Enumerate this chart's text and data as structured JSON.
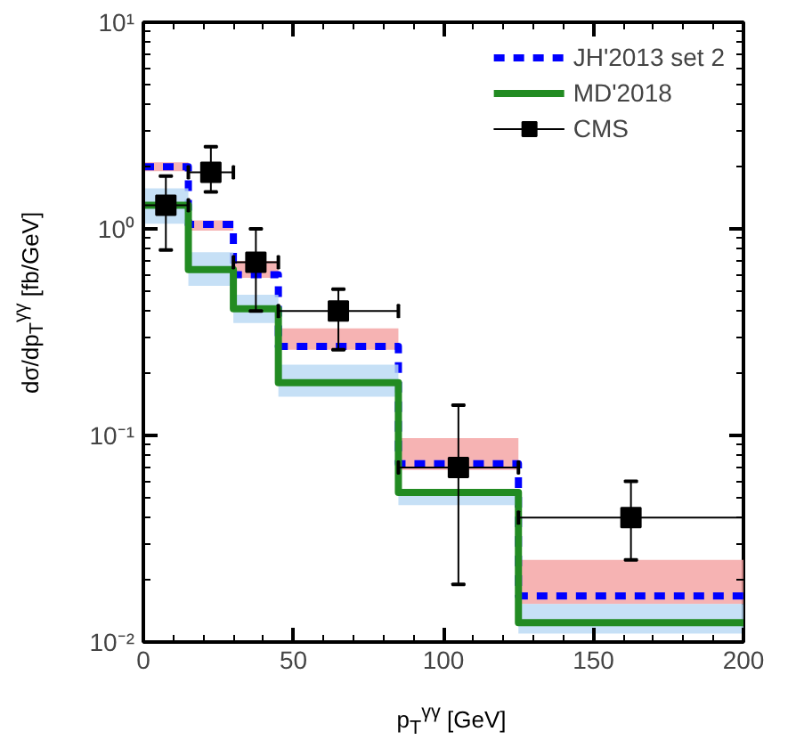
{
  "chart_data": {
    "type": "step",
    "xlabel": "p$_{T}$$^{γγ}$ [GeV]",
    "ylabel": "dσ/dp$_{T}$$^{γγ}$ [fb/GeV]",
    "log": "y",
    "xlim": [
      0,
      200
    ],
    "ylim": [
      0.01,
      10
    ],
    "xticks": [
      0,
      50,
      100,
      150,
      200
    ],
    "yticks": [
      {
        "value": 0.01,
        "label": "10⁻²"
      },
      {
        "value": 0.1,
        "label": "10⁻¹"
      },
      {
        "value": 1,
        "label": "10⁰"
      },
      {
        "value": 10,
        "label": "10¹"
      }
    ],
    "legend": "top right",
    "grid": false,
    "series": [
      {
        "name": "JH'2013 set 2",
        "color": "#0000ff",
        "line_style": "dashed",
        "x": [
          0,
          15,
          30,
          45,
          85,
          125,
          200
        ],
        "values": [
          2.0,
          1.05,
          0.6,
          0.27,
          0.073,
          0.0167,
          0.0167
        ],
        "lower": [
          1.9,
          0.98,
          0.58,
          0.26,
          0.068,
          0.0153,
          0.0153
        ],
        "upper": [
          2.1,
          1.1,
          0.7,
          0.33,
          0.097,
          0.025,
          0.025
        ]
      },
      {
        "name": "MD'2018",
        "color": "#228b22",
        "line_style": "solid",
        "x": [
          0,
          15,
          30,
          45,
          85,
          125,
          200
        ],
        "values": [
          1.3,
          0.635,
          0.41,
          0.18,
          0.053,
          0.0124,
          0.0124
        ],
        "lower": [
          1.06,
          0.53,
          0.35,
          0.154,
          0.046,
          0.011,
          0.011
        ],
        "upper": [
          1.57,
          0.77,
          0.48,
          0.22,
          0.054,
          0.0153,
          0.0153
        ]
      },
      {
        "name": "CMS",
        "type": "scatter",
        "marker": "square",
        "color": "#000000",
        "x": [
          7.5,
          22.5,
          37.5,
          65,
          105,
          162.5
        ],
        "values": [
          1.3,
          1.88,
          0.69,
          0.4,
          0.07,
          0.04
        ],
        "errors": [
          [
            0.79,
            1.8
          ],
          [
            1.51,
            2.5
          ],
          [
            0.4,
            1.0
          ],
          [
            0.26,
            0.51
          ],
          [
            0.019,
            0.14
          ],
          [
            0.025,
            0.06
          ]
        ],
        "xerrors": [
          [
            0,
            15
          ],
          [
            15,
            30
          ],
          [
            30,
            45
          ],
          [
            45,
            85
          ],
          [
            85,
            125
          ],
          [
            125,
            200
          ]
        ]
      }
    ]
  }
}
